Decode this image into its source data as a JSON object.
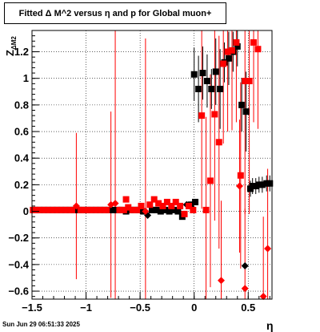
{
  "chart_data": {
    "type": "scatter",
    "title": "Fitted Δ M^2 versus η and p for Global muon+",
    "xlabel": "η",
    "ylabel": "Z",
    "ylabel_sub": "ΔM2",
    "xlim": [
      -1.5,
      0.72
    ],
    "ylim": [
      -0.66,
      1.36
    ],
    "xticks": [
      -1.5,
      -1,
      -0.5,
      0,
      0.5
    ],
    "xtick_labels": [
      "−1.5",
      "−1",
      "−0.5",
      "0",
      "0.5"
    ],
    "yticks": [
      -0.6,
      -0.4,
      -0.2,
      0,
      0.2,
      0.4,
      0.6,
      0.8,
      1,
      1.2
    ],
    "ytick_labels": [
      "−0.6",
      "−0.4",
      "−0.2",
      "0",
      "0.2",
      "0.4",
      "0.6",
      "0.8",
      "1",
      "1.2"
    ],
    "grid": true,
    "series": [
      {
        "color": "#000000",
        "points": [
          {
            "x": -1.47,
            "y": 0.01,
            "m": "s"
          },
          {
            "x": -1.43,
            "y": 0.01,
            "m": "s"
          },
          {
            "x": -1.39,
            "y": 0.01,
            "m": "s"
          },
          {
            "x": -1.35,
            "y": 0.01,
            "m": "s"
          },
          {
            "x": -1.31,
            "y": 0.01,
            "m": "s"
          },
          {
            "x": -1.27,
            "y": 0.01,
            "m": "s"
          },
          {
            "x": -1.23,
            "y": 0.01,
            "m": "s"
          },
          {
            "x": -1.19,
            "y": 0.01,
            "m": "s"
          },
          {
            "x": -1.15,
            "y": 0.01,
            "m": "s"
          },
          {
            "x": -1.11,
            "y": 0.01,
            "m": "s"
          },
          {
            "x": -1.07,
            "y": 0.01,
            "m": "s"
          },
          {
            "x": -1.03,
            "y": 0.01,
            "m": "s"
          },
          {
            "x": -0.99,
            "y": 0.01,
            "m": "s"
          },
          {
            "x": -0.95,
            "y": 0.01,
            "m": "s"
          },
          {
            "x": -0.91,
            "y": 0.01,
            "m": "s"
          },
          {
            "x": -0.87,
            "y": 0.01,
            "m": "s"
          },
          {
            "x": -0.83,
            "y": 0.01,
            "m": "s"
          },
          {
            "x": -0.79,
            "y": 0.01,
            "m": "s"
          },
          {
            "x": -0.75,
            "y": 0.01,
            "m": "s"
          },
          {
            "x": -0.71,
            "y": 0.01,
            "m": "s"
          },
          {
            "x": -0.67,
            "y": 0.01,
            "m": "s"
          },
          {
            "x": -0.63,
            "y": 0.0,
            "m": "s"
          },
          {
            "x": -0.59,
            "y": 0.01,
            "m": "s"
          },
          {
            "x": -0.55,
            "y": 0.01,
            "m": "s"
          },
          {
            "x": -0.51,
            "y": 0.01,
            "m": "s"
          },
          {
            "x": -0.47,
            "y": 0.0,
            "m": "s"
          },
          {
            "x": -0.43,
            "y": -0.03,
            "m": "d"
          },
          {
            "x": -0.39,
            "y": 0.01,
            "m": "s"
          },
          {
            "x": -0.35,
            "y": 0.01,
            "m": "s"
          },
          {
            "x": -0.31,
            "y": 0.0,
            "m": "s"
          },
          {
            "x": -0.27,
            "y": 0.01,
            "m": "s"
          },
          {
            "x": -0.23,
            "y": 0.0,
            "m": "s"
          },
          {
            "x": -0.19,
            "y": 0.01,
            "m": "s"
          },
          {
            "x": -0.15,
            "y": 0.0,
            "m": "s"
          },
          {
            "x": -0.11,
            "y": -0.04,
            "m": "s"
          },
          {
            "x": -0.07,
            "y": 0.05,
            "m": "d"
          },
          {
            "x": -0.03,
            "y": 0.05,
            "m": "s"
          },
          {
            "x": 0.01,
            "y": 0.07,
            "m": "s"
          },
          {
            "x": 0.0,
            "y": 1.03,
            "m": "s",
            "eh": 0.2
          },
          {
            "x": 0.04,
            "y": 0.92,
            "m": "s",
            "eh": 0.25
          },
          {
            "x": 0.08,
            "y": 1.04,
            "m": "s",
            "eh": 0.2
          },
          {
            "x": 0.12,
            "y": 0.98,
            "m": "s",
            "eh": 0.2
          },
          {
            "x": 0.16,
            "y": 0.92,
            "m": "s",
            "eh": 0.15
          },
          {
            "x": 0.2,
            "y": 1.05,
            "m": "s",
            "eh": 0.25
          },
          {
            "x": 0.24,
            "y": 0.92,
            "m": "s",
            "eh": 0.3
          },
          {
            "x": 0.28,
            "y": 1.12,
            "m": "s",
            "eh": 0.15
          },
          {
            "x": 0.32,
            "y": 1.15,
            "m": "s",
            "eh": 0.2
          },
          {
            "x": 0.36,
            "y": 1.2,
            "m": "s",
            "eh": 0.15
          },
          {
            "x": 0.4,
            "y": 1.24,
            "m": "s",
            "eh": 0.15
          },
          {
            "x": 0.44,
            "y": 0.8,
            "m": "s",
            "eh": 0.2
          },
          {
            "x": 0.48,
            "y": 0.75,
            "m": "s",
            "eh": 0.3
          },
          {
            "x": 0.52,
            "y": 0.17,
            "m": "s",
            "eh": 0.06
          },
          {
            "x": 0.54,
            "y": 0.19,
            "m": "s",
            "eh": 0.06
          },
          {
            "x": 0.57,
            "y": 0.19,
            "m": "s",
            "eh": 0.06
          },
          {
            "x": 0.6,
            "y": 0.2,
            "m": "s",
            "eh": 0.06
          },
          {
            "x": 0.63,
            "y": 0.2,
            "m": "s",
            "eh": 0.06
          },
          {
            "x": 0.67,
            "y": 0.21,
            "m": "s",
            "eh": 0.06
          },
          {
            "x": 0.7,
            "y": 0.21,
            "m": "s",
            "eh": 0.06
          },
          {
            "x": 0.47,
            "y": -0.41,
            "m": "d"
          }
        ]
      },
      {
        "color": "#ff0000",
        "points": [
          {
            "x": -1.49,
            "y": 0.01,
            "m": "s"
          },
          {
            "x": -1.45,
            "y": 0.01,
            "m": "s"
          },
          {
            "x": -1.41,
            "y": 0.01,
            "m": "s"
          },
          {
            "x": -1.37,
            "y": 0.01,
            "m": "s"
          },
          {
            "x": -1.33,
            "y": 0.01,
            "m": "s"
          },
          {
            "x": -1.29,
            "y": 0.01,
            "m": "s"
          },
          {
            "x": -1.25,
            "y": 0.01,
            "m": "s"
          },
          {
            "x": -1.21,
            "y": 0.01,
            "m": "s"
          },
          {
            "x": -1.17,
            "y": 0.01,
            "m": "s"
          },
          {
            "x": -1.13,
            "y": 0.01,
            "m": "s"
          },
          {
            "x": -1.09,
            "y": 0.04,
            "m": "d",
            "eh": 0.55
          },
          {
            "x": -1.05,
            "y": 0.01,
            "m": "s"
          },
          {
            "x": -1.01,
            "y": 0.01,
            "m": "s"
          },
          {
            "x": -0.97,
            "y": 0.01,
            "m": "s"
          },
          {
            "x": -0.93,
            "y": 0.01,
            "m": "s"
          },
          {
            "x": -0.89,
            "y": 0.01,
            "m": "s"
          },
          {
            "x": -0.85,
            "y": 0.01,
            "m": "s"
          },
          {
            "x": -0.81,
            "y": 0.01,
            "m": "s"
          },
          {
            "x": -0.77,
            "y": 0.05,
            "m": "d",
            "eh": 0.7
          },
          {
            "x": -0.73,
            "y": 0.06,
            "m": "d",
            "eh": 1.3
          },
          {
            "x": -0.69,
            "y": 0.01,
            "m": "s"
          },
          {
            "x": -0.65,
            "y": 0.01,
            "m": "s"
          },
          {
            "x": -0.63,
            "y": 0.09,
            "m": "s"
          },
          {
            "x": -0.61,
            "y": 0.03,
            "m": "s"
          },
          {
            "x": -0.57,
            "y": 0.01,
            "m": "s"
          },
          {
            "x": -0.53,
            "y": 0.01,
            "m": "s"
          },
          {
            "x": -0.49,
            "y": 0.04,
            "m": "s"
          },
          {
            "x": -0.45,
            "y": 0.0,
            "m": "d",
            "eh": 1.3
          },
          {
            "x": -0.41,
            "y": 0.05,
            "m": "s"
          },
          {
            "x": -0.37,
            "y": 0.09,
            "m": "s"
          },
          {
            "x": -0.33,
            "y": 0.06,
            "m": "s"
          },
          {
            "x": -0.29,
            "y": 0.04,
            "m": "s"
          },
          {
            "x": -0.25,
            "y": 0.07,
            "m": "s"
          },
          {
            "x": -0.21,
            "y": 0.04,
            "m": "s"
          },
          {
            "x": -0.17,
            "y": 0.07,
            "m": "s"
          },
          {
            "x": -0.13,
            "y": 0.04,
            "m": "s"
          },
          {
            "x": -0.09,
            "y": -0.02,
            "m": "s"
          },
          {
            "x": -0.05,
            "y": 0.04,
            "m": "s"
          },
          {
            "x": -0.01,
            "y": 0.01,
            "m": "s"
          },
          {
            "x": 0.07,
            "y": 0.72,
            "m": "s",
            "eh": 0.7
          },
          {
            "x": 0.11,
            "y": 0.01,
            "m": "s",
            "eh": 0.7
          },
          {
            "x": 0.15,
            "y": 0.23,
            "m": "s",
            "eh": 0.8
          },
          {
            "x": 0.19,
            "y": 0.73,
            "m": "s",
            "eh": 0.8
          },
          {
            "x": 0.23,
            "y": 0.52,
            "m": "s",
            "eh": 0.8
          },
          {
            "x": 0.27,
            "y": 1.11,
            "m": "s",
            "eh": 0.6
          },
          {
            "x": 0.31,
            "y": 1.2,
            "m": "s",
            "eh": 0.6
          },
          {
            "x": 0.35,
            "y": 1.21,
            "m": "s",
            "eh": 0.6
          },
          {
            "x": 0.39,
            "y": 1.27,
            "m": "s",
            "eh": 0.6
          },
          {
            "x": 0.43,
            "y": 0.27,
            "m": "s",
            "eh": 0.7
          },
          {
            "x": 0.47,
            "y": 0.98,
            "m": "s",
            "eh": 1.0
          },
          {
            "x": 0.51,
            "y": 0.98,
            "m": "s",
            "eh": 1.0
          },
          {
            "x": 0.55,
            "y": 1.27,
            "m": "s",
            "eh": 0.6
          },
          {
            "x": 0.59,
            "y": 1.22,
            "m": "s",
            "eh": 0.6
          },
          {
            "x": 0.42,
            "y": 0.19,
            "m": "d",
            "eh": 0.5
          },
          {
            "x": 0.25,
            "y": -0.52,
            "m": "d",
            "eh": 0.6
          },
          {
            "x": 0.47,
            "y": -0.58,
            "m": "d",
            "eh": 0.6
          },
          {
            "x": 0.64,
            "y": -0.64,
            "m": "d",
            "eh": 0.6
          },
          {
            "x": 0.68,
            "y": -0.28,
            "m": "d",
            "eh": 0.6
          }
        ]
      }
    ]
  },
  "footer": {
    "date": "Sun Jun 29 06:51:33 2025"
  }
}
